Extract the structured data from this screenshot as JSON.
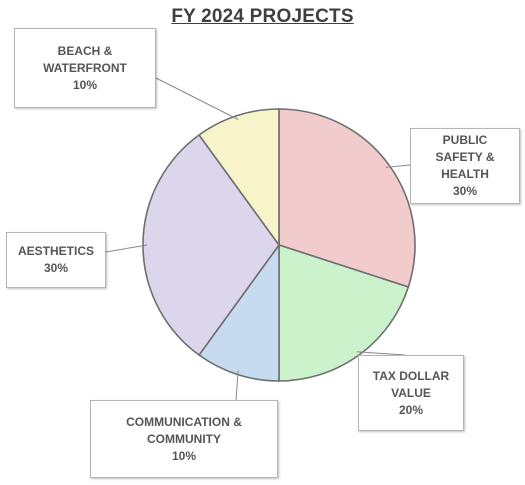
{
  "chart_data": {
    "type": "pie",
    "title": "FY 2024 PROJECTS",
    "slices": [
      {
        "name": "PUBLIC SAFETY & HEALTH",
        "label_lines": [
          "PUBLIC",
          "SAFETY &",
          "HEALTH"
        ],
        "percent_label": "30%",
        "value": 30,
        "color": "#f2cccc"
      },
      {
        "name": "TAX DOLLAR VALUE",
        "label_lines": [
          "TAX DOLLAR",
          "VALUE"
        ],
        "percent_label": "20%",
        "value": 20,
        "color": "#ccf2cc"
      },
      {
        "name": "COMMUNICATION & COMMUNITY",
        "label_lines": [
          "COMMUNICATION &",
          "COMMUNITY"
        ],
        "percent_label": "10%",
        "value": 10,
        "color": "#c6daf0"
      },
      {
        "name": "AESTHETICS",
        "label_lines": [
          "AESTHETICS"
        ],
        "percent_label": "30%",
        "value": 30,
        "color": "#dcd6ec"
      },
      {
        "name": "BEACH & WATERFRONT",
        "label_lines": [
          "BEACH &",
          "WATERFRONT"
        ],
        "percent_label": "10%",
        "value": 10,
        "color": "#f6f4c8"
      }
    ]
  }
}
